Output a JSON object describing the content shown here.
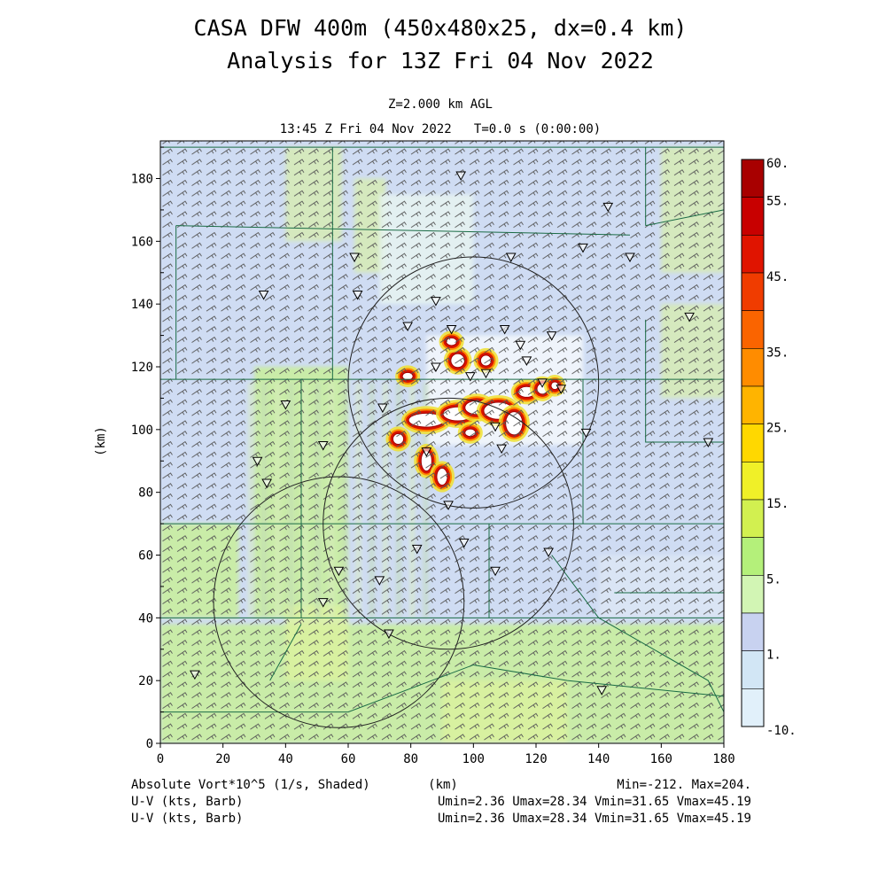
{
  "chart_data": {
    "type": "heatmap",
    "title_line1": "CASA DFW 400m (450x480x25, dx=0.4 km)",
    "title_line2": "Analysis for 13Z Fri 04 Nov 2022",
    "subtitle_level": "Z=2.000 km AGL",
    "subtitle_time": "13:45 Z Fri 04 Nov 2022   T=0.0 s (0:00:00)",
    "xlabel": "(km)",
    "ylabel": "(km)",
    "xlim": [
      0,
      180
    ],
    "ylim": [
      0,
      192
    ],
    "x_ticks": [
      "0",
      "20",
      "40",
      "60",
      "80",
      "100",
      "120",
      "140",
      "160",
      "180"
    ],
    "y_ticks": [
      "0",
      "20",
      "40",
      "60",
      "80",
      "100",
      "120",
      "140",
      "160",
      "180"
    ],
    "colorbar": {
      "labels": [
        "60.",
        "55.",
        "45.",
        "35.",
        "25.",
        "15.",
        "5.",
        "1.",
        "-10."
      ],
      "colors": [
        "#a80000",
        "#c80000",
        "#e01400",
        "#f03c00",
        "#fa6400",
        "#ff8c00",
        "#ffb400",
        "#ffd800",
        "#f0f028",
        "#d2f050",
        "#b4f07a",
        "#d2f5b4",
        "#c8d2f0",
        "#d2e6f5",
        "#e1f0fa"
      ]
    },
    "annotations": {
      "left_1": "Absolute Vort*10^5 (1/s, Shaded)",
      "left_2": "U-V (kts, Barb)",
      "left_3": "U-V (kts, Barb)",
      "center": "(km)",
      "right_1": "Min=-212. Max=204.",
      "right_2": "Umin=2.36 Umax=28.34 Vmin=31.65 Vmax=45.19",
      "right_3": "Umin=2.36 Umax=28.34 Vmin=31.65 Vmax=45.19"
    },
    "range_rings": [
      {
        "x": 100,
        "y": 115,
        "r": 40
      },
      {
        "x": 57,
        "y": 45,
        "r": 40
      },
      {
        "x": 92,
        "y": 70,
        "r": 40
      }
    ],
    "radar_sites": [
      [
        96,
        181
      ],
      [
        143,
        171
      ],
      [
        62,
        155
      ],
      [
        112,
        155
      ],
      [
        135,
        158
      ],
      [
        150,
        155
      ],
      [
        33,
        143
      ],
      [
        63,
        143
      ],
      [
        88,
        141
      ],
      [
        169,
        136
      ],
      [
        79,
        133
      ],
      [
        93,
        132
      ],
      [
        110,
        132
      ],
      [
        115,
        127
      ],
      [
        125,
        130
      ],
      [
        88,
        120
      ],
      [
        99,
        117
      ],
      [
        104,
        118
      ],
      [
        117,
        122
      ],
      [
        122,
        115
      ],
      [
        128,
        113
      ],
      [
        40,
        108
      ],
      [
        71,
        107
      ],
      [
        107,
        101
      ],
      [
        136,
        99
      ],
      [
        175,
        96
      ],
      [
        31,
        90
      ],
      [
        52,
        95
      ],
      [
        85,
        93
      ],
      [
        109,
        94
      ],
      [
        34,
        83
      ],
      [
        92,
        76
      ],
      [
        97,
        64
      ],
      [
        124,
        61
      ],
      [
        57,
        55
      ],
      [
        70,
        52
      ],
      [
        82,
        62
      ],
      [
        107,
        55
      ],
      [
        52,
        45
      ],
      [
        73,
        35
      ],
      [
        11,
        22
      ],
      [
        141,
        17
      ]
    ],
    "vorticity_cores": [
      {
        "x": 85,
        "y": 103,
        "rx": 6,
        "ry": 2.5
      },
      {
        "x": 95,
        "y": 105,
        "rx": 5,
        "ry": 2.5
      },
      {
        "x": 101,
        "y": 107,
        "rx": 4,
        "ry": 2.5
      },
      {
        "x": 108,
        "y": 106,
        "rx": 5,
        "ry": 3
      },
      {
        "x": 113,
        "y": 102,
        "rx": 3,
        "ry": 4
      },
      {
        "x": 95,
        "y": 122,
        "rx": 2.5,
        "ry": 2.5
      },
      {
        "x": 104,
        "y": 122,
        "rx": 2,
        "ry": 2
      },
      {
        "x": 117,
        "y": 112,
        "rx": 3,
        "ry": 2
      },
      {
        "x": 122,
        "y": 113,
        "rx": 2,
        "ry": 2
      },
      {
        "x": 85,
        "y": 90,
        "rx": 2,
        "ry": 3.5
      },
      {
        "x": 76,
        "y": 97,
        "rx": 2,
        "ry": 2
      },
      {
        "x": 93,
        "y": 128,
        "rx": 2,
        "ry": 1.5
      },
      {
        "x": 90,
        "y": 85,
        "rx": 2,
        "ry": 3
      },
      {
        "x": 99,
        "y": 99,
        "rx": 2,
        "ry": 1.5
      },
      {
        "x": 79,
        "y": 117,
        "rx": 2,
        "ry": 1.5
      },
      {
        "x": 126,
        "y": 114,
        "rx": 1.5,
        "ry": 1.5
      }
    ]
  }
}
